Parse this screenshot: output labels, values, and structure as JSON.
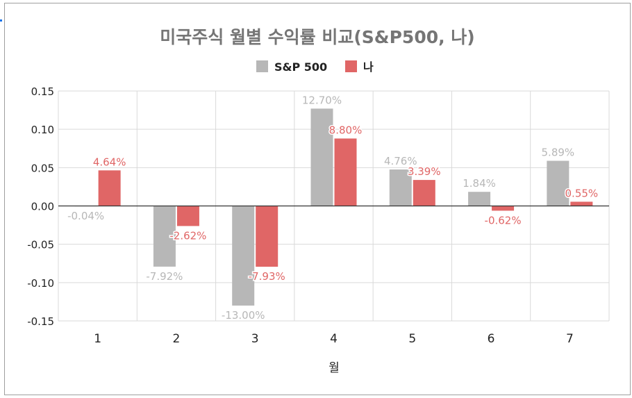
{
  "chart_data": {
    "type": "bar",
    "title": "미국주식 월별 수익률 비교(S&P500, 나)",
    "xlabel": "월",
    "ylabel": "",
    "categories": [
      "1",
      "2",
      "3",
      "4",
      "5",
      "6",
      "7"
    ],
    "series": [
      {
        "name": "S&P 500",
        "color": "#b7b7b7",
        "values": [
          -0.0004,
          -0.0792,
          -0.13,
          0.127,
          0.0476,
          0.0184,
          0.0589
        ],
        "labels": [
          "-0.04%",
          "-7.92%",
          "-13.00%",
          "12.70%",
          "4.76%",
          "1.84%",
          "5.89%"
        ]
      },
      {
        "name": "나",
        "color": "#e06666",
        "values": [
          0.0464,
          -0.0262,
          -0.0793,
          0.088,
          0.0339,
          -0.0062,
          0.0055
        ],
        "labels": [
          "4.64%",
          "-2.62%",
          "-7.93%",
          "8.80%",
          "3.39%",
          "-0.62%",
          "0.55%"
        ]
      }
    ],
    "ylim": [
      -0.15,
      0.15
    ],
    "yticks": [
      0.15,
      0.1,
      0.05,
      0.0,
      -0.05,
      -0.1,
      -0.15
    ],
    "ytick_labels": [
      "0.15",
      "0.10",
      "0.05",
      "0.00",
      "-0.05",
      "-0.10",
      "-0.15"
    ],
    "grid": true,
    "legend_position": "top"
  }
}
